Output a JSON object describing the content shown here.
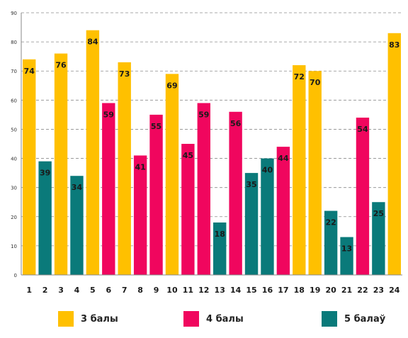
{
  "chart_data": {
    "type": "bar",
    "title": "",
    "xlabel": "",
    "ylabel": "",
    "ylim": [
      0,
      90
    ],
    "yticks": [
      0,
      10,
      20,
      30,
      40,
      50,
      60,
      70,
      80,
      90
    ],
    "grid": true,
    "legend_position": "bottom",
    "categories": [
      "1",
      "2",
      "3",
      "4",
      "5",
      "6",
      "7",
      "8",
      "9",
      "10",
      "11",
      "12",
      "13",
      "14",
      "15",
      "16",
      "17",
      "18",
      "19",
      "20",
      "21",
      "22",
      "23",
      "24"
    ],
    "values": [
      74,
      39,
      76,
      34,
      84,
      59,
      73,
      41,
      55,
      69,
      45,
      59,
      18,
      56,
      35,
      40,
      44,
      72,
      70,
      22,
      13,
      54,
      25,
      83
    ],
    "bar_series": [
      0,
      2,
      0,
      2,
      0,
      1,
      0,
      1,
      1,
      0,
      1,
      1,
      2,
      1,
      2,
      2,
      1,
      0,
      0,
      2,
      2,
      1,
      2,
      0
    ],
    "series": [
      {
        "name": "3 балы",
        "color": "#FFC000"
      },
      {
        "name": "4 балы",
        "color": "#F0065E"
      },
      {
        "name": "5 балаў",
        "color": "#0A7A7A"
      }
    ]
  }
}
